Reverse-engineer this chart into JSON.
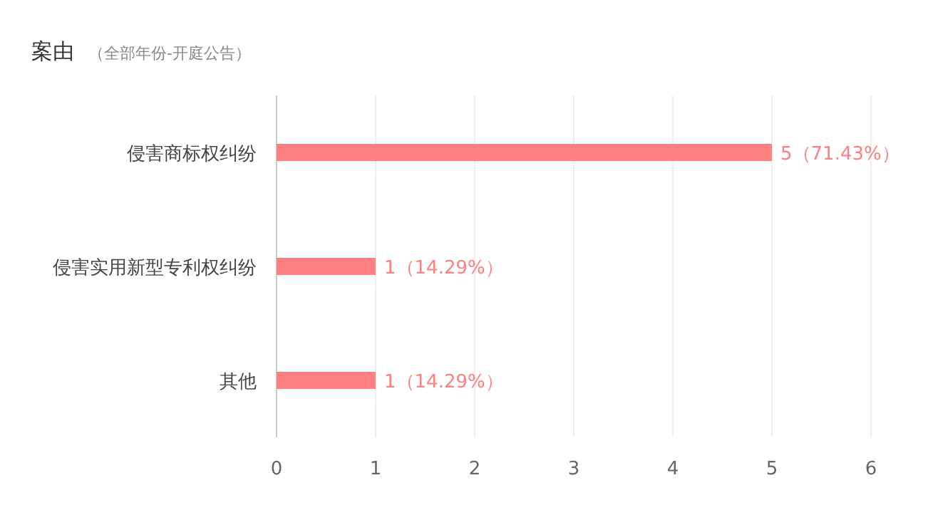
{
  "chart_data": {
    "type": "bar",
    "orientation": "horizontal",
    "title": "案由",
    "subtitle": "（全部年份-开庭公告）",
    "categories": [
      "侵害商标权纠纷",
      "侵害实用新型专利权纠纷",
      "其他"
    ],
    "values": [
      5,
      1,
      1
    ],
    "value_labels": [
      "5（71.43%）",
      "1（14.29%）",
      "1（14.29%）"
    ],
    "color": "#ff8080",
    "xlim": [
      0,
      6
    ],
    "xticks": [
      0,
      1,
      2,
      3,
      4,
      5,
      6
    ],
    "grid": "x"
  }
}
